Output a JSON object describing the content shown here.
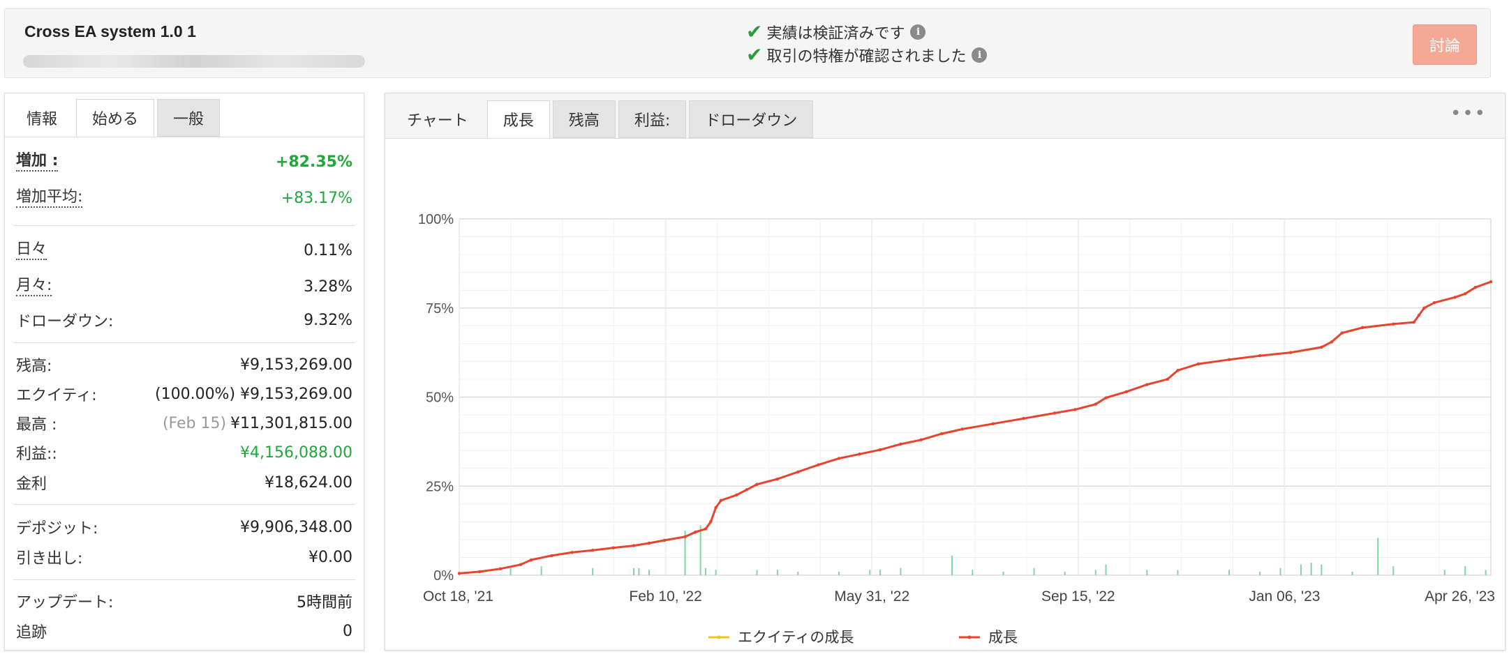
{
  "header": {
    "system_name": "Cross EA system 1.0 1",
    "verified_track": "実績は検証済みです",
    "verified_privileges": "取引の特権が確認されました",
    "discuss_label": "討論"
  },
  "left_tabs": [
    "情報",
    "始める",
    "一般"
  ],
  "stats": {
    "gain_label": "増加 :",
    "gain_value": "+82.35%",
    "abs_gain_label": "増加平均:",
    "abs_gain_value": "+83.17%",
    "daily_label": "日々",
    "daily_value": "0.11%",
    "monthly_label": "月々:",
    "monthly_value": "3.28%",
    "drawdown_label": "ドローダウン:",
    "drawdown_value": "9.32%",
    "balance_label": "残高:",
    "balance_value": "¥9,153,269.00",
    "equity_label": "エクイティ:",
    "equity_value": "(100.00%) ¥9,153,269.00",
    "highest_label": "最高 :",
    "highest_date": "(Feb 15)",
    "highest_value": "¥11,301,815.00",
    "profit_label": "利益::",
    "profit_value": "¥4,156,088.00",
    "interest_label": "金利",
    "interest_value": "¥18,624.00",
    "deposits_label": "デポジット:",
    "deposits_value": "¥9,906,348.00",
    "withdrawals_label": "引き出し:",
    "withdrawals_value": "¥0.00",
    "updated_label": "アップデート:",
    "updated_value": "5時間前",
    "tracking_label": "追跡",
    "tracking_value": "0"
  },
  "chart_tabs": [
    "チャート",
    "成長",
    "残高",
    "利益:",
    "ドローダウン"
  ],
  "colors": {
    "growth": "#e8432e",
    "equity": "#f0c419",
    "bars": "#7fd6a2",
    "green": "#1fa83a",
    "discuss": "#f4a896"
  },
  "chart_data": {
    "type": "line",
    "xlabels": [
      "Oct 18, '21",
      "Feb 10, '22",
      "May 31, '22",
      "Sep 15, '22",
      "Jan 06, '23",
      "Apr 26, '23"
    ],
    "ylabels": [
      "100%",
      "75%",
      "50%",
      "25%",
      "0%"
    ],
    "ylim": [
      0,
      100
    ],
    "legend": [
      "エクイティの成長",
      "成長"
    ],
    "series": [
      {
        "name": "成長",
        "points": [
          [
            0,
            0.5
          ],
          [
            4,
            1
          ],
          [
            8,
            1.8
          ],
          [
            12,
            3
          ],
          [
            14,
            4.3
          ],
          [
            18,
            5.5
          ],
          [
            22,
            6.4
          ],
          [
            26,
            7
          ],
          [
            30,
            7.7
          ],
          [
            34,
            8.3
          ],
          [
            37,
            9
          ],
          [
            40,
            9.8
          ],
          [
            44,
            10.8
          ],
          [
            46,
            12.1
          ],
          [
            48,
            13
          ],
          [
            49,
            15
          ],
          [
            50,
            19
          ],
          [
            51,
            21
          ],
          [
            54,
            22.5
          ],
          [
            56,
            24
          ],
          [
            58,
            25.5
          ],
          [
            62,
            27
          ],
          [
            66,
            29
          ],
          [
            70,
            31
          ],
          [
            74,
            32.8
          ],
          [
            78,
            34
          ],
          [
            82,
            35.2
          ],
          [
            86,
            36.8
          ],
          [
            90,
            38
          ],
          [
            94,
            39.7
          ],
          [
            98,
            41
          ],
          [
            104,
            42.5
          ],
          [
            110,
            44
          ],
          [
            116,
            45.5
          ],
          [
            120,
            46.5
          ],
          [
            124,
            48
          ],
          [
            126,
            49.8
          ],
          [
            130,
            51.5
          ],
          [
            134,
            53.5
          ],
          [
            138,
            55
          ],
          [
            140,
            57.5
          ],
          [
            144,
            59.3
          ],
          [
            150,
            60.5
          ],
          [
            156,
            61.6
          ],
          [
            162,
            62.5
          ],
          [
            168,
            64
          ],
          [
            170,
            65.5
          ],
          [
            172,
            68
          ],
          [
            176,
            69.5
          ],
          [
            182,
            70.5
          ],
          [
            186,
            71
          ],
          [
            187,
            73
          ],
          [
            188,
            75
          ],
          [
            190,
            76.5
          ],
          [
            194,
            78
          ],
          [
            196,
            79
          ],
          [
            198,
            80.8
          ],
          [
            201,
            82.35
          ]
        ]
      }
    ],
    "bars": [
      [
        10,
        2.5
      ],
      [
        16,
        2.5
      ],
      [
        26,
        2
      ],
      [
        34,
        2
      ],
      [
        35,
        2
      ],
      [
        37,
        1.5
      ],
      [
        44,
        12.5
      ],
      [
        47,
        14
      ],
      [
        48,
        2
      ],
      [
        50,
        1.5
      ],
      [
        58,
        1.5
      ],
      [
        62,
        1.5
      ],
      [
        66,
        1
      ],
      [
        74,
        1
      ],
      [
        80,
        1.5
      ],
      [
        82,
        1.5
      ],
      [
        86,
        2
      ],
      [
        96,
        5.5
      ],
      [
        100,
        1.5
      ],
      [
        106,
        1
      ],
      [
        112,
        2
      ],
      [
        118,
        1
      ],
      [
        124,
        1.5
      ],
      [
        126,
        3
      ],
      [
        134,
        1.5
      ],
      [
        140,
        1.5
      ],
      [
        150,
        1.5
      ],
      [
        156,
        1
      ],
      [
        160,
        2
      ],
      [
        164,
        3
      ],
      [
        166,
        3.5
      ],
      [
        168,
        3
      ],
      [
        174,
        1
      ],
      [
        179,
        10.5
      ],
      [
        182,
        2.5
      ],
      [
        192,
        1.5
      ],
      [
        196,
        2.5
      ],
      [
        200,
        1.5
      ]
    ]
  }
}
